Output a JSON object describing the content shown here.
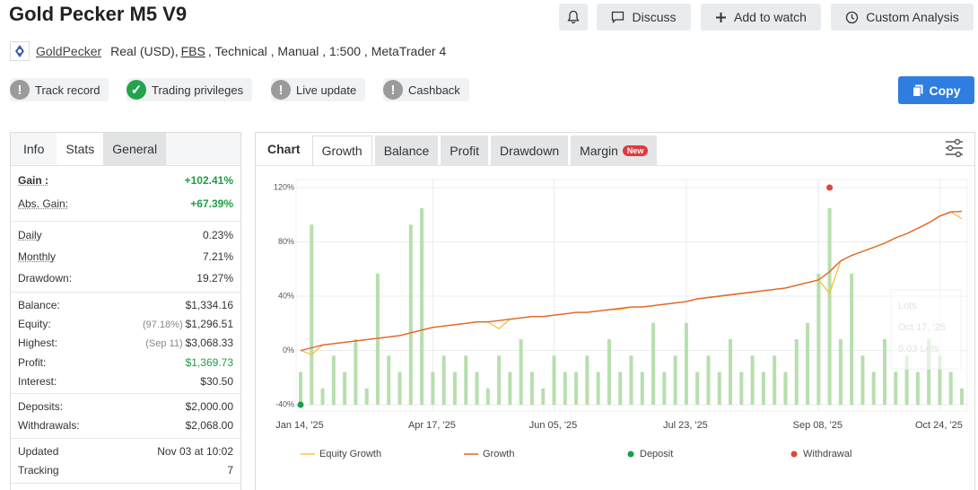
{
  "header": {
    "title": "Gold Pecker M5 V9",
    "buttons": [
      "Discuss",
      "Add to watch",
      "Custom Analysis"
    ],
    "author": "GoldPecker",
    "account": "Real (USD),",
    "broker": "FBS",
    "details": ", Technical , Manual , 1:500 , MetaTrader 4",
    "copy": "Copy"
  },
  "badges": [
    {
      "label": "Track record",
      "ok": false
    },
    {
      "label": "Trading privileges",
      "ok": true
    },
    {
      "label": "Live update",
      "ok": false
    },
    {
      "label": "Cashback",
      "ok": false
    }
  ],
  "stats": {
    "tabs": [
      "Info",
      "Stats",
      "General"
    ],
    "groups": [
      [
        {
          "label": "Gain :",
          "value": "+102.41%",
          "color": "#1f9d44",
          "bold": true,
          "hint": true
        },
        {
          "label": "Abs. Gain:",
          "value": "+67.39%",
          "color": "#1f9d44",
          "hint": true
        }
      ],
      [
        {
          "label": "Daily",
          "value": "0.23%",
          "hint": true
        },
        {
          "label": "Monthly",
          "value": "7.21%",
          "hint": true
        },
        {
          "label": "Drawdown:",
          "value": "19.27%"
        }
      ],
      [
        {
          "label": "Balance:",
          "value": "$1,334.16"
        },
        {
          "label": "Equity:",
          "note": "(97.18%)",
          "value": "$1,296.51"
        },
        {
          "label": "Highest:",
          "note": "(Sep 11)",
          "value": "$3,068.33"
        },
        {
          "label": "Profit:",
          "value": "$1,369.73",
          "color": "#1f9d44"
        },
        {
          "label": "Interest:",
          "value": "$30.50"
        }
      ],
      [
        {
          "label": "Deposits:",
          "value": "$2,000.00"
        },
        {
          "label": "Withdrawals:",
          "value": "$2,068.00"
        }
      ],
      [
        {
          "label": "Updated",
          "value": "Nov 03 at 10:02"
        },
        {
          "label": "Tracking",
          "value": "7"
        }
      ]
    ]
  },
  "chart_tabs": {
    "title": "Chart",
    "tabs": [
      "Growth",
      "Balance",
      "Profit",
      "Drawdown",
      "Margin"
    ],
    "new_badge": "New"
  },
  "chart_data": {
    "type": "line",
    "categories": [
      "Jan 14, '25",
      null,
      null,
      null,
      null,
      null,
      null,
      null,
      null,
      null,
      null,
      null,
      "Apr 17, '25",
      null,
      null,
      null,
      null,
      null,
      null,
      null,
      null,
      null,
      null,
      "Jun 05, '25",
      null,
      null,
      null,
      null,
      null,
      null,
      null,
      null,
      null,
      null,
      null,
      "Jul 23, '25",
      null,
      null,
      null,
      null,
      null,
      null,
      null,
      null,
      null,
      null,
      null,
      "Sep 08, '25",
      null,
      null,
      null,
      null,
      null,
      null,
      null,
      null,
      null,
      null,
      "Oct 24, '25",
      null,
      null
    ],
    "series": [
      {
        "name": "Equity Growth",
        "color": "#f5c342",
        "values": [
          0,
          -3,
          4,
          5,
          6,
          7,
          8,
          9,
          10,
          11,
          13,
          15,
          17,
          18,
          19,
          20,
          21,
          21,
          16,
          23,
          24,
          25,
          25,
          26,
          27,
          28,
          28,
          29,
          30,
          30,
          32,
          32,
          33,
          34,
          35,
          36,
          38,
          39,
          40,
          41,
          42,
          43,
          44,
          45,
          46,
          48,
          50,
          52,
          42,
          66,
          70,
          73,
          76,
          79,
          83,
          86,
          90,
          94,
          99,
          102,
          97
        ]
      },
      {
        "name": "Growth",
        "color": "#e0662c",
        "values": [
          0,
          2,
          4,
          5,
          6,
          7,
          8,
          9,
          10,
          11,
          13,
          15,
          17,
          18,
          19,
          20,
          21,
          21,
          22,
          23,
          24,
          25,
          25,
          26,
          27,
          28,
          28,
          29,
          30,
          31,
          32,
          32,
          33,
          34,
          35,
          36,
          38,
          39,
          40,
          41,
          42,
          43,
          44,
          45,
          46,
          48,
          50,
          52,
          58,
          66,
          70,
          73,
          76,
          79,
          83,
          86,
          90,
          94,
          99,
          102,
          102.41
        ]
      }
    ],
    "lots": {
      "name": "Lots",
      "color": "#b7dfae",
      "values": [
        0.02,
        0.11,
        0.01,
        0.03,
        0.02,
        0.04,
        0.01,
        0.08,
        0.03,
        0.02,
        0.11,
        0.12,
        0.02,
        0.03,
        0.02,
        0.03,
        0.02,
        0.01,
        0.03,
        0.02,
        0.04,
        0.02,
        0.01,
        0.03,
        0.02,
        0.02,
        0.03,
        0.02,
        0.04,
        0.02,
        0.03,
        0.02,
        0.05,
        0.02,
        0.03,
        0.05,
        0.02,
        0.03,
        0.02,
        0.04,
        0.02,
        0.03,
        0.02,
        0.03,
        0.02,
        0.04,
        0.05,
        0.08,
        0.12,
        0.04,
        0.08,
        0.03,
        0.02,
        0.04,
        0.02,
        0.03,
        0.02,
        0.04,
        0.03,
        0.02,
        0.01
      ]
    },
    "markers": [
      {
        "name": "Deposit",
        "color": "#1a9e4a",
        "edge": "bottom",
        "values": [
          2000,
          null,
          null,
          null,
          null,
          null,
          null,
          null,
          null,
          null,
          null,
          null,
          null,
          null,
          null,
          null,
          null,
          null,
          null,
          null,
          null,
          null,
          null,
          null,
          null,
          null,
          null,
          null,
          null,
          null,
          null,
          null,
          null,
          null,
          null,
          null,
          null,
          null,
          null,
          null,
          null,
          null,
          null,
          null,
          null,
          null,
          null,
          null,
          null,
          null,
          null,
          null,
          null,
          null,
          null,
          null,
          null,
          null,
          null,
          null,
          null
        ]
      },
      {
        "name": "Withdrawal",
        "color": "#e0443a",
        "edge": "top",
        "values": [
          null,
          null,
          null,
          null,
          null,
          null,
          null,
          null,
          null,
          null,
          null,
          null,
          null,
          null,
          null,
          null,
          null,
          null,
          null,
          null,
          null,
          null,
          null,
          null,
          null,
          null,
          null,
          null,
          null,
          null,
          null,
          null,
          null,
          null,
          null,
          null,
          null,
          null,
          null,
          null,
          null,
          null,
          null,
          null,
          null,
          null,
          null,
          null,
          2068,
          null,
          null,
          null,
          null,
          null,
          null,
          null,
          null,
          null,
          null,
          null,
          null
        ]
      }
    ],
    "ylim": [
      -40,
      120
    ],
    "yticks": [
      {
        "value": -40,
        "label": "-40%"
      },
      {
        "value": 0,
        "label": "0%"
      },
      {
        "value": 40,
        "label": "40%"
      },
      {
        "value": 80,
        "label": "80%"
      },
      {
        "value": 120,
        "label": "120%"
      }
    ],
    "grid": true,
    "tooltip": {
      "title": "Lots",
      "date": "Oct 17, '25",
      "value": "0.03 Lots"
    }
  }
}
